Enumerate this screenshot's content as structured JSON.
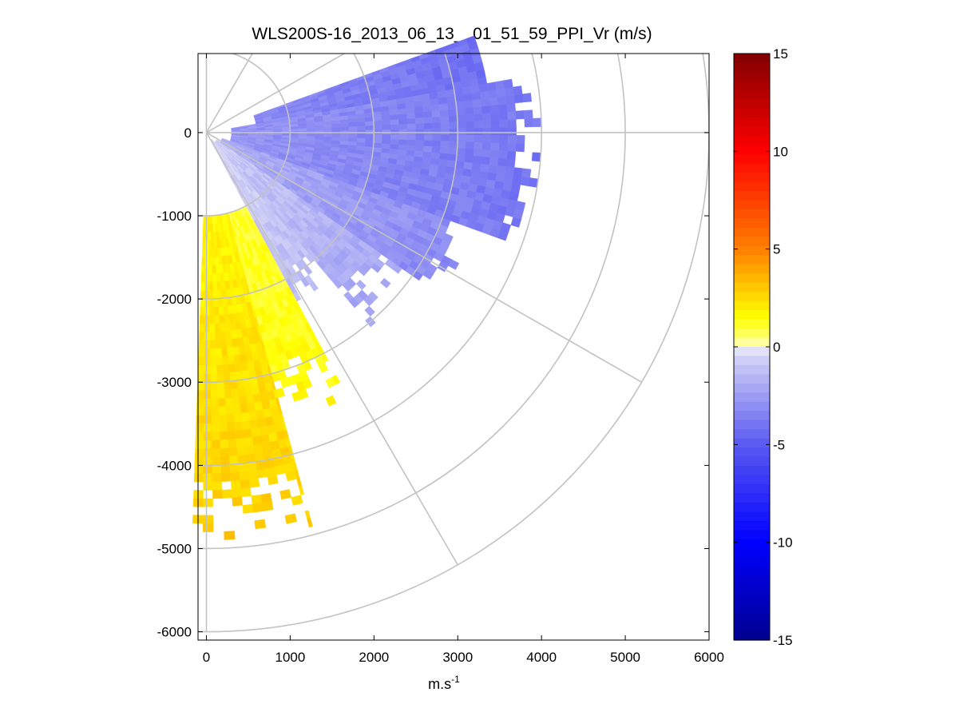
{
  "chart_data": {
    "type": "heatmap",
    "subtype": "polar-sector-ppi",
    "title": "WLS200S-16_2013_06_13__01_51_59_PPI_Vr (m/s)",
    "xlabel_base": "m.s",
    "xlabel_exp": "-1",
    "ylabel": "",
    "xlim": [
      -100,
      6000
    ],
    "ylim": [
      -6100,
      950
    ],
    "xticks": [
      0,
      1000,
      2000,
      3000,
      4000,
      5000,
      6000
    ],
    "xtick_labels": [
      "0",
      "1000",
      "2000",
      "3000",
      "4000",
      "5000",
      "6000"
    ],
    "yticks": [
      0,
      -1000,
      -2000,
      -3000,
      -4000,
      -5000,
      -6000
    ],
    "ytick_labels": [
      "0",
      "-1000",
      "-2000",
      "-3000",
      "-4000",
      "-5000",
      "-6000"
    ],
    "grid": true,
    "polar_grid": {
      "ring_radii": [
        1000,
        2000,
        3000,
        4000,
        5000,
        6000
      ],
      "spoke_angles_deg": [
        0,
        -30,
        -60,
        -90,
        30,
        60,
        90
      ]
    },
    "colorbar": {
      "range": [
        -15,
        15
      ],
      "ticks": [
        15,
        10,
        5,
        0,
        -5,
        -10,
        -15
      ],
      "tick_labels": [
        "15",
        "10",
        "5",
        "0",
        "-5",
        "-10",
        "-15"
      ],
      "colormap_stops": [
        {
          "v": -15,
          "color": "#00008f"
        },
        {
          "v": -10,
          "color": "#0000ff"
        },
        {
          "v": -5,
          "color": "#5a5af2"
        },
        {
          "v": -0.3,
          "color": "#d8d8f6"
        },
        {
          "v": 0,
          "color": "#ffffff"
        },
        {
          "v": 0.3,
          "color": "#ffff80"
        },
        {
          "v": 1.5,
          "color": "#ffff00"
        },
        {
          "v": 5,
          "color": "#ff8000"
        },
        {
          "v": 10,
          "color": "#ff0000"
        },
        {
          "v": 15,
          "color": "#800000"
        }
      ]
    },
    "scan": {
      "azimuth_range_deg": [
        -92,
        20
      ],
      "range_min_m": 0,
      "range_max_m": 5700,
      "range_gate_m": 100,
      "azimuth_step_deg": 1.5
    },
    "velocity_sectors": [
      {
        "az_from": 10,
        "az_to": 20,
        "r_from": 600,
        "r_to": 3400,
        "v_near": -3.2,
        "v_far": -4.2,
        "fill_decay_from": 3400
      },
      {
        "az_from": -20,
        "az_to": 10,
        "r_from": 300,
        "r_to": 4000,
        "v_near": -2.8,
        "v_far": -4.0,
        "fill_decay_from": 3600
      },
      {
        "az_from": -35,
        "az_to": -20,
        "r_from": 200,
        "r_to": 3500,
        "v_near": -1.8,
        "v_far": -3.4,
        "fill_decay_from": 3000
      },
      {
        "az_from": -50,
        "az_to": -35,
        "r_from": 150,
        "r_to": 3000,
        "v_near": -0.8,
        "v_far": -2.4,
        "fill_decay_from": 2400
      },
      {
        "az_from": -62,
        "az_to": -50,
        "r_from": 100,
        "r_to": 2400,
        "v_near": -0.3,
        "v_far": -1.6,
        "fill_decay_from": 1800
      },
      {
        "az_from": -75,
        "az_to": -62,
        "r_from": 1000,
        "r_to": 3600,
        "v_near": 1.0,
        "v_far": 1.6,
        "fill_decay_from": 2800
      },
      {
        "az_from": -92,
        "az_to": -75,
        "r_from": 1000,
        "r_to": 4900,
        "v_near": 1.7,
        "v_far": 2.9,
        "fill_decay_from": 4100
      }
    ]
  }
}
